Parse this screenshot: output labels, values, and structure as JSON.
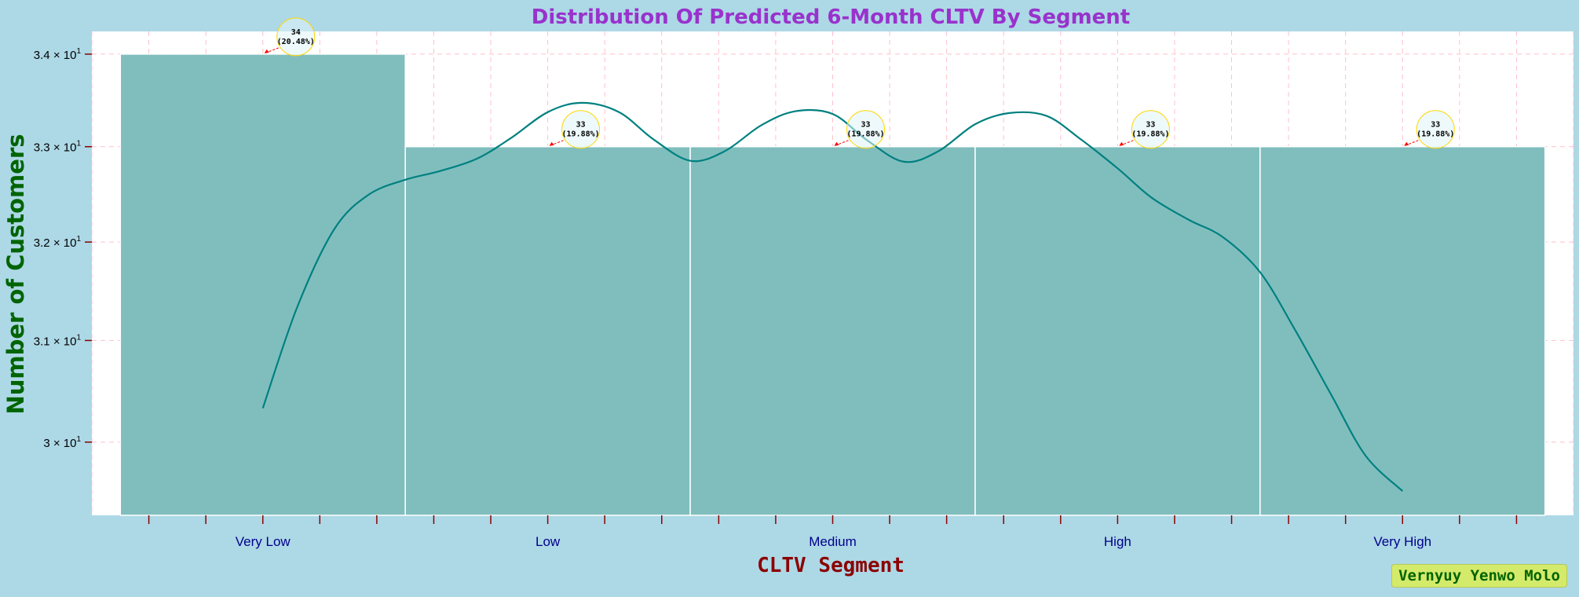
{
  "chart_data": {
    "type": "bar",
    "title": "Distribution Of Predicted 6-Month CLTV By Segment",
    "xlabel": "CLTV Segment",
    "ylabel": "Number of Customers",
    "categories": [
      "Very Low",
      "Low",
      "Medium",
      "High",
      "Very High"
    ],
    "values": [
      34,
      33,
      33,
      33,
      33
    ],
    "percentages": [
      "20.48%",
      "19.88%",
      "19.88%",
      "19.88%",
      "19.88%"
    ],
    "annotations": [
      "34\n(20.48%)",
      "33\n(19.88%)",
      "33\n(19.88%)",
      "33\n(19.88%)",
      "33\n(19.88%)"
    ],
    "yscale": "log",
    "ylim": [
      29.3,
      34.25
    ],
    "yticks": [
      30,
      31,
      32,
      33,
      34
    ],
    "ytick_labels": [
      {
        "mantissa": "3",
        "exp": "1"
      },
      {
        "mantissa": "3.1",
        "exp": "1"
      },
      {
        "mantissa": "3.2",
        "exp": "1"
      },
      {
        "mantissa": "3.3",
        "exp": "1"
      },
      {
        "mantissa": "3.4",
        "exp": "1"
      }
    ],
    "kde_curve": {
      "x": [
        0,
        0.12,
        0.25,
        0.37,
        0.5,
        0.62,
        0.75,
        0.87,
        1.0,
        1.12,
        1.25,
        1.37,
        1.5,
        1.62,
        1.75,
        1.87,
        2.0,
        2.12,
        2.25,
        2.37,
        2.5,
        2.62,
        2.75,
        2.87,
        3.0,
        3.12,
        3.25,
        3.37,
        3.5,
        3.62,
        3.75,
        3.87,
        4.0
      ],
      "y": [
        30.33,
        31.33,
        32.13,
        32.49,
        32.65,
        32.74,
        32.87,
        33.09,
        33.37,
        33.47,
        33.37,
        33.08,
        32.85,
        32.95,
        33.23,
        33.38,
        33.35,
        33.07,
        32.84,
        32.95,
        33.24,
        33.36,
        33.33,
        33.08,
        32.77,
        32.46,
        32.23,
        32.05,
        31.69,
        31.12,
        30.46,
        29.87,
        29.53
      ]
    },
    "grid": true,
    "legend": "none",
    "colors": {
      "background": "#add8e6",
      "plot_area": "#ffffff",
      "bar_fill": "#80bebe",
      "bar_edge": "#ffffff",
      "kde_line": "#008080",
      "title": "#9932cc",
      "xlabel": "#8b0000",
      "ylabel": "#006400",
      "xtick_labels": "#00008b",
      "tick_marks": "#8b0000",
      "grid": "#ffc0cb",
      "annotation_circle": "#ffd700",
      "annotation_arrow": "#ff0000"
    }
  },
  "watermark": "Vernyuy Yenwo Molo"
}
